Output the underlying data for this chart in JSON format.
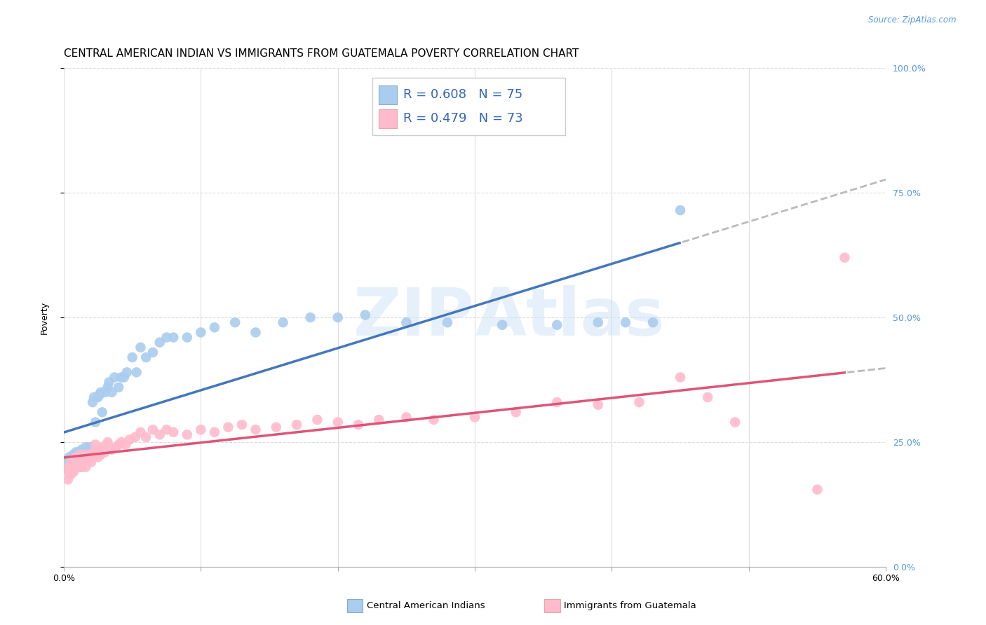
{
  "title": "CENTRAL AMERICAN INDIAN VS IMMIGRANTS FROM GUATEMALA POVERTY CORRELATION CHART",
  "source": "Source: ZipAtlas.com",
  "ylabel": "Poverty",
  "yticks": [
    "0.0%",
    "25.0%",
    "50.0%",
    "75.0%",
    "100.0%"
  ],
  "ytick_vals": [
    0,
    0.25,
    0.5,
    0.75,
    1.0
  ],
  "xlim": [
    0,
    0.6
  ],
  "ylim": [
    0,
    1.0
  ],
  "series1": {
    "name": "Central American Indians",
    "color": "#AACCEE",
    "R": 0.608,
    "N": 75,
    "line_color": "#4477BB",
    "x": [
      0.002,
      0.003,
      0.003,
      0.004,
      0.004,
      0.005,
      0.005,
      0.005,
      0.006,
      0.006,
      0.007,
      0.007,
      0.008,
      0.008,
      0.008,
      0.009,
      0.009,
      0.01,
      0.01,
      0.011,
      0.011,
      0.012,
      0.012,
      0.013,
      0.013,
      0.014,
      0.014,
      0.015,
      0.016,
      0.016,
      0.017,
      0.018,
      0.019,
      0.02,
      0.021,
      0.022,
      0.023,
      0.025,
      0.026,
      0.027,
      0.028,
      0.03,
      0.032,
      0.033,
      0.035,
      0.037,
      0.04,
      0.042,
      0.044,
      0.046,
      0.05,
      0.053,
      0.056,
      0.06,
      0.065,
      0.07,
      0.075,
      0.08,
      0.09,
      0.1,
      0.11,
      0.125,
      0.14,
      0.16,
      0.18,
      0.2,
      0.22,
      0.25,
      0.28,
      0.32,
      0.36,
      0.39,
      0.41,
      0.43,
      0.45
    ],
    "y": [
      0.195,
      0.2,
      0.215,
      0.19,
      0.22,
      0.195,
      0.2,
      0.21,
      0.2,
      0.215,
      0.195,
      0.225,
      0.2,
      0.215,
      0.22,
      0.2,
      0.23,
      0.205,
      0.22,
      0.215,
      0.23,
      0.21,
      0.225,
      0.2,
      0.235,
      0.215,
      0.23,
      0.22,
      0.24,
      0.225,
      0.235,
      0.23,
      0.24,
      0.235,
      0.33,
      0.34,
      0.29,
      0.34,
      0.345,
      0.35,
      0.31,
      0.35,
      0.36,
      0.37,
      0.35,
      0.38,
      0.36,
      0.38,
      0.38,
      0.39,
      0.42,
      0.39,
      0.44,
      0.42,
      0.43,
      0.45,
      0.46,
      0.46,
      0.46,
      0.47,
      0.48,
      0.49,
      0.47,
      0.49,
      0.5,
      0.5,
      0.505,
      0.49,
      0.49,
      0.485,
      0.485,
      0.49,
      0.49,
      0.49,
      0.715
    ]
  },
  "series2": {
    "name": "Immigrants from Guatemala",
    "color": "#FFBBCC",
    "R": 0.479,
    "N": 73,
    "line_color": "#DD5577",
    "x": [
      0.002,
      0.003,
      0.004,
      0.004,
      0.005,
      0.005,
      0.006,
      0.006,
      0.007,
      0.007,
      0.008,
      0.008,
      0.009,
      0.009,
      0.01,
      0.01,
      0.011,
      0.012,
      0.012,
      0.013,
      0.014,
      0.015,
      0.016,
      0.017,
      0.018,
      0.019,
      0.02,
      0.021,
      0.022,
      0.023,
      0.025,
      0.026,
      0.027,
      0.028,
      0.03,
      0.032,
      0.035,
      0.038,
      0.04,
      0.042,
      0.045,
      0.048,
      0.052,
      0.056,
      0.06,
      0.065,
      0.07,
      0.075,
      0.08,
      0.09,
      0.1,
      0.11,
      0.12,
      0.13,
      0.14,
      0.155,
      0.17,
      0.185,
      0.2,
      0.215,
      0.23,
      0.25,
      0.27,
      0.3,
      0.33,
      0.36,
      0.39,
      0.42,
      0.45,
      0.47,
      0.49,
      0.55,
      0.57
    ],
    "y": [
      0.195,
      0.175,
      0.19,
      0.2,
      0.185,
      0.205,
      0.195,
      0.215,
      0.19,
      0.205,
      0.2,
      0.215,
      0.2,
      0.22,
      0.205,
      0.215,
      0.21,
      0.2,
      0.225,
      0.215,
      0.21,
      0.225,
      0.2,
      0.22,
      0.215,
      0.225,
      0.21,
      0.22,
      0.23,
      0.245,
      0.22,
      0.235,
      0.225,
      0.24,
      0.23,
      0.25,
      0.235,
      0.24,
      0.245,
      0.25,
      0.245,
      0.255,
      0.26,
      0.27,
      0.26,
      0.275,
      0.265,
      0.275,
      0.27,
      0.265,
      0.275,
      0.27,
      0.28,
      0.285,
      0.275,
      0.28,
      0.285,
      0.295,
      0.29,
      0.285,
      0.295,
      0.3,
      0.295,
      0.3,
      0.31,
      0.33,
      0.325,
      0.33,
      0.38,
      0.34,
      0.29,
      0.155,
      0.62
    ]
  },
  "watermark": "ZIPAtlas",
  "background_color": "#ffffff",
  "grid_color": "#dddddd",
  "title_fontsize": 11,
  "axis_label_fontsize": 9,
  "tick_fontsize": 9,
  "right_ytick_color": "#5599DD",
  "legend_box_color_blue": "#AACCEE",
  "legend_box_color_pink": "#FFBBCC",
  "legend_text_color": "#3366BB",
  "legend_R1": "R = 0.608",
  "legend_N1": "N = 75",
  "legend_R2": "R = 0.479",
  "legend_N2": "N = 73"
}
